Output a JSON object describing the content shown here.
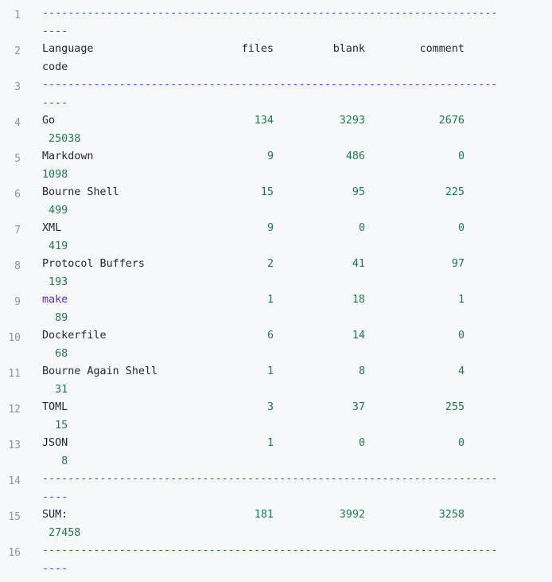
{
  "line_numbers": [
    "1",
    "2",
    "3",
    "4",
    "5",
    "6",
    "7",
    "8",
    "9",
    "10",
    "11",
    "12",
    "13",
    "14",
    "15",
    "16"
  ],
  "separator": {
    "dashes_line1": "-----------------------------------------------------------------------",
    "dashes_line2": "----"
  },
  "header": {
    "language": "Language",
    "files": "files",
    "blank": "blank",
    "comment": "comment",
    "code": "code"
  },
  "rows": [
    {
      "language": "Go",
      "files": "134",
      "blank": "3293",
      "comment": "2676",
      "code": " 25038"
    },
    {
      "language": "Markdown",
      "files": "9",
      "blank": "486",
      "comment": "0",
      "code": "1098"
    },
    {
      "language": "Bourne Shell",
      "files": "15",
      "blank": "95",
      "comment": "225",
      "code": " 499"
    },
    {
      "language": "XML",
      "files": "9",
      "blank": "0",
      "comment": "0",
      "code": " 419"
    },
    {
      "language": "Protocol Buffers",
      "files": "2",
      "blank": "41",
      "comment": "97",
      "code": " 193"
    },
    {
      "language": "make",
      "files": "1",
      "blank": "18",
      "comment": "1",
      "code": "  89"
    },
    {
      "language": "Dockerfile",
      "files": "6",
      "blank": "14",
      "comment": "0",
      "code": "  68"
    },
    {
      "language": "Bourne Again Shell",
      "files": "1",
      "blank": "8",
      "comment": "4",
      "code": "  31"
    },
    {
      "language": "TOML",
      "files": "3",
      "blank": "37",
      "comment": "255",
      "code": "  15"
    },
    {
      "language": "JSON",
      "files": "1",
      "blank": "0",
      "comment": "0",
      "code": "   8"
    }
  ],
  "sum": {
    "language": "SUM:",
    "files": "181",
    "blank": "3992",
    "comment": "3258",
    "code": " 27458"
  }
}
